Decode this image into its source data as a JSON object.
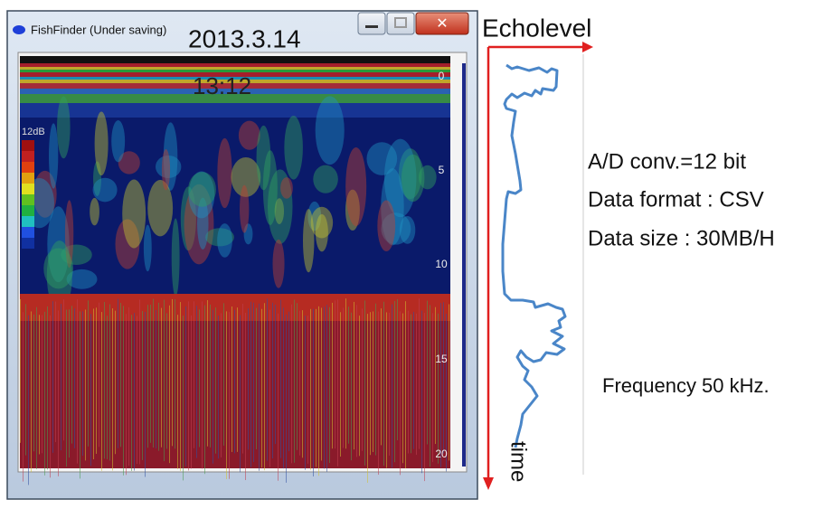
{
  "window": {
    "title": "FishFinder (Under saving)"
  },
  "overlay": {
    "date": "2013.3.14",
    "time": "13:12"
  },
  "echogram": {
    "depth_labels": [
      "0",
      "5",
      "10",
      "15",
      "20"
    ],
    "scale_label": "12dB"
  },
  "echo_plot": {
    "x_label": "Echolevel",
    "y_label": "time"
  },
  "specs": [
    "A/D conv.=12 bit",
    "Data format : CSV",
    "Data size : 30MB/H"
  ],
  "frequency": "Frequency 50 kHz."
}
